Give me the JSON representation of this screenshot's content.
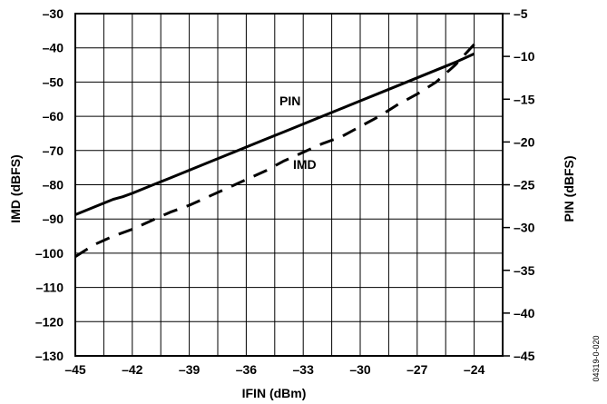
{
  "chart_data": {
    "type": "line",
    "xlabel": "IFIN (dBm)",
    "ylabel_left": "IMD (dBFS)",
    "ylabel_right": "PIN (dBFS)",
    "xlim": [
      -45,
      -22.5
    ],
    "x_ticks": [
      -45,
      -42,
      -39,
      -36,
      -33,
      -30,
      -27,
      -24
    ],
    "x_tick_labels": [
      "–45",
      "–42",
      "–39",
      "–36",
      "–33",
      "–30",
      "–27",
      "–24"
    ],
    "ylim_left": [
      -130,
      -30
    ],
    "y_ticks_left": [
      -30,
      -40,
      -50,
      -60,
      -70,
      -80,
      -90,
      -100,
      -110,
      -120,
      -130
    ],
    "y_tick_labels_left": [
      "–30",
      "–40",
      "–50",
      "–60",
      "–70",
      "–80",
      "–90",
      "–100",
      "–110",
      "–120",
      "–130"
    ],
    "ylim_right": [
      -45,
      -5
    ],
    "y_ticks_right": [
      -5,
      -10,
      -15,
      -20,
      -25,
      -30,
      -35,
      -40,
      -45
    ],
    "y_tick_labels_right": [
      "–5",
      "–10",
      "–15",
      "–20",
      "–25",
      "–30",
      "–35",
      "–40",
      "–45"
    ],
    "grid": true,
    "series": [
      {
        "name": "PIN",
        "axis": "right",
        "style": "solid",
        "x": [
          -45,
          -44,
          -43,
          -42.5,
          -42,
          -41,
          -40,
          -39,
          -38,
          -37,
          -36,
          -35,
          -34,
          -33,
          -32,
          -31,
          -30,
          -29,
          -28,
          -27,
          -26,
          -25,
          -24
        ],
        "y": [
          -28.5,
          -27.6,
          -26.7,
          -26.4,
          -26.0,
          -25.1,
          -24.2,
          -23.3,
          -22.4,
          -21.5,
          -20.6,
          -19.7,
          -18.8,
          -17.9,
          -17.0,
          -16.1,
          -15.2,
          -14.3,
          -13.4,
          -12.5,
          -11.6,
          -10.7,
          -9.7
        ]
      },
      {
        "name": "IMD",
        "axis": "left",
        "style": "dashed",
        "x": [
          -45,
          -44,
          -43,
          -42,
          -41,
          -40,
          -39,
          -38,
          -37,
          -36,
          -35,
          -34,
          -33,
          -32,
          -31,
          -30,
          -29,
          -28,
          -27,
          -26,
          -25,
          -24
        ],
        "y": [
          -101,
          -97.5,
          -95,
          -93,
          -90.5,
          -88,
          -86,
          -83.5,
          -81,
          -78.5,
          -76,
          -73,
          -70.5,
          -68,
          -66,
          -63,
          -60,
          -56.5,
          -53.5,
          -50,
          -45,
          -39
        ]
      }
    ],
    "series_labels": [
      "PIN",
      "IMD"
    ]
  },
  "figure_id": "04319-0-020"
}
